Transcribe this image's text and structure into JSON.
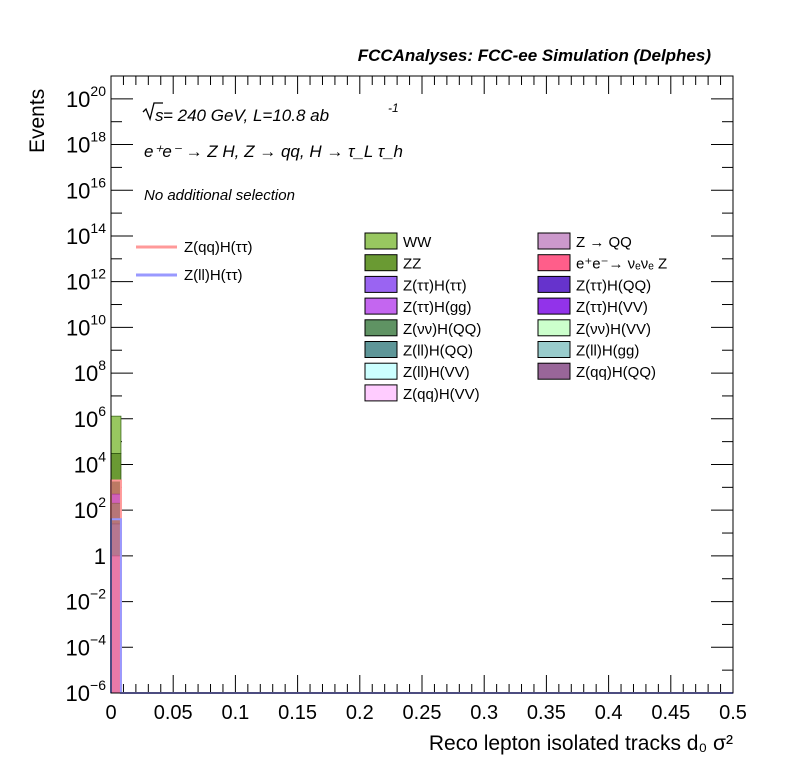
{
  "header": {
    "title": "FCCAnalyses: FCC-ee Simulation (Delphes)",
    "energy_prefix": "s",
    "energy_text": " = 240 GeV, L=10.8 ab",
    "lumi_exp": "-1",
    "process": "e⁺e⁻ → Z H, Z → qq, H → τ_L τ_h",
    "selection": "No additional selection"
  },
  "chart_data": {
    "type": "bar",
    "xlabel": "Reco lepton isolated tracks d₀ σ²",
    "ylabel": "Events",
    "xlim": [
      0,
      0.5
    ],
    "ylim": [
      1e-06,
      1e+21
    ],
    "log_y": true,
    "grid": false,
    "x_ticks": [
      "0",
      "0.05",
      "0.1",
      "0.15",
      "0.2",
      "0.25",
      "0.3",
      "0.35",
      "0.4",
      "0.45",
      "0.5"
    ],
    "y_ticks": [
      {
        "base": "10",
        "exp": "−6"
      },
      {
        "base": "10",
        "exp": "−4"
      },
      {
        "base": "10",
        "exp": "−2"
      },
      {
        "base": "1",
        "exp": ""
      },
      {
        "base": "10",
        "exp": "2"
      },
      {
        "base": "10",
        "exp": "4"
      },
      {
        "base": "10",
        "exp": "6"
      },
      {
        "base": "10",
        "exp": "8"
      },
      {
        "base": "10",
        "exp": "10"
      },
      {
        "base": "10",
        "exp": "12"
      },
      {
        "base": "10",
        "exp": "14"
      },
      {
        "base": "10",
        "exp": "16"
      },
      {
        "base": "10",
        "exp": "18"
      },
      {
        "base": "10",
        "exp": "20"
      }
    ],
    "stack_bin": [
      0,
      0.008
    ],
    "stack": [
      {
        "name": "WW",
        "color": "#98c760",
        "edge": "#3f6b1e",
        "from": 30000,
        "to": 1300000
      },
      {
        "name": "ZZ",
        "color": "#6a9a33",
        "edge": "#2f5510",
        "from": 500,
        "to": 30000
      },
      {
        "name": "Z(ττ)H(ττ)",
        "color": "#9a64f2",
        "edge": "#4b1f9a",
        "from": 200,
        "to": 500
      },
      {
        "name": "Z(νν)H(QQ)",
        "color": "#5f9363",
        "edge": "#2a5a30",
        "from": 25,
        "to": 200
      },
      {
        "name": "Z(ll)H(QQ)",
        "color": "#5e9698",
        "edge": "#2b5a5c",
        "from": 1,
        "to": 25
      },
      {
        "name": "Z → QQ",
        "color": "#cc99cc",
        "edge": "#7a4a7a",
        "from": 1e-06,
        "to": 1
      }
    ],
    "signals": [
      {
        "name": "Z(qq)H(ττ)",
        "color": "#ff9999",
        "values": [
          {
            "x0": 0,
            "x1": 0.008,
            "y": 2000
          },
          {
            "x0": 0.008,
            "x1": 0.5,
            "y": 1e-06
          }
        ]
      },
      {
        "name": "Z(ll)H(ττ)",
        "color": "#9999ff",
        "values": [
          {
            "x0": 0,
            "x1": 0.008,
            "y": 40
          },
          {
            "x0": 0.008,
            "x1": 0.5,
            "y": 1e-06
          }
        ]
      }
    ],
    "overlay_fill": {
      "color": "#ff5e8a",
      "from": 1e-06,
      "to": 2000
    },
    "legend_signals": [
      {
        "label": "Z(qq)H(ττ)",
        "color": "#ff9999"
      },
      {
        "label": "Z(ll)H(ττ)",
        "color": "#9999ff"
      }
    ],
    "legend_backgrounds": [
      {
        "label": "WW",
        "color": "#98c760"
      },
      {
        "label": "Z → QQ",
        "color": "#cc99cc"
      },
      {
        "label": "ZZ",
        "color": "#6a9a33"
      },
      {
        "label": "e⁺e⁻→ νₑνₑ Z",
        "color": "#ff5e8a"
      },
      {
        "label": "Z(ττ)H(ττ)",
        "color": "#9a64f2"
      },
      {
        "label": "Z(ττ)H(QQ)",
        "color": "#6633cc"
      },
      {
        "label": "Z(ττ)H(gg)",
        "color": "#c466f0"
      },
      {
        "label": "Z(ττ)H(VV)",
        "color": "#9233ea"
      },
      {
        "label": "Z(νν)H(QQ)",
        "color": "#5f9363"
      },
      {
        "label": "Z(νν)H(VV)",
        "color": "#ccffcc"
      },
      {
        "label": "Z(ll)H(QQ)",
        "color": "#5e9698"
      },
      {
        "label": "Z(ll)H(gg)",
        "color": "#99cccc"
      },
      {
        "label": "Z(ll)H(VV)",
        "color": "#ccffff"
      },
      {
        "label": "Z(qq)H(QQ)",
        "color": "#996699"
      },
      {
        "label": "Z(qq)H(VV)",
        "color": "#ffccff"
      }
    ]
  }
}
